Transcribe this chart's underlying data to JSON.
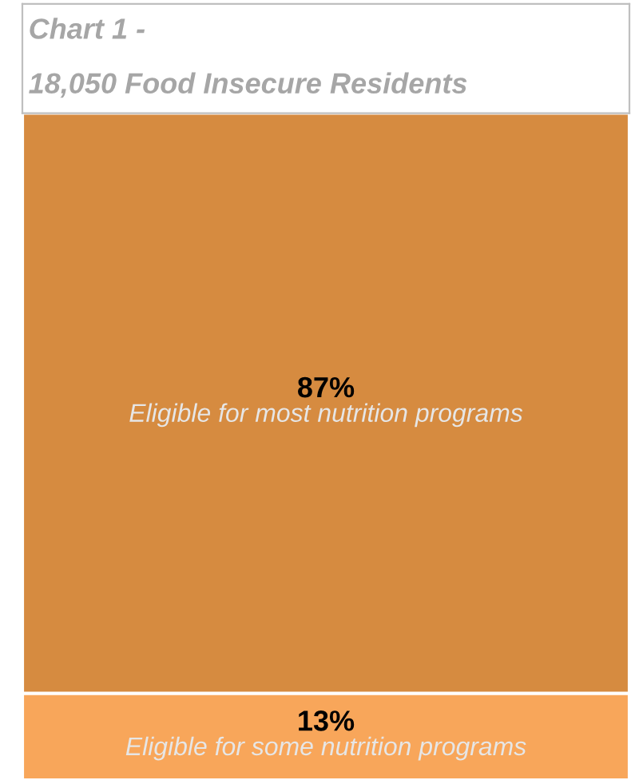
{
  "chart_data": {
    "type": "bar",
    "stacked": true,
    "title": "Chart 1 -",
    "subtitle": "18,050 Food Insecure Residents",
    "categories": [
      null
    ],
    "series": [
      {
        "name": "Eligible for some nutrition programs",
        "color": "#f8a65a",
        "values": [
          13
        ],
        "value_labels": [
          "13%"
        ]
      },
      {
        "name": "Eligible for most nutrition programs",
        "color": "#d68b40",
        "values": [
          87
        ],
        "value_labels": [
          "87%"
        ]
      }
    ],
    "ylim": [
      0,
      100
    ],
    "tick_labels": false,
    "grid": false,
    "legend": false
  }
}
